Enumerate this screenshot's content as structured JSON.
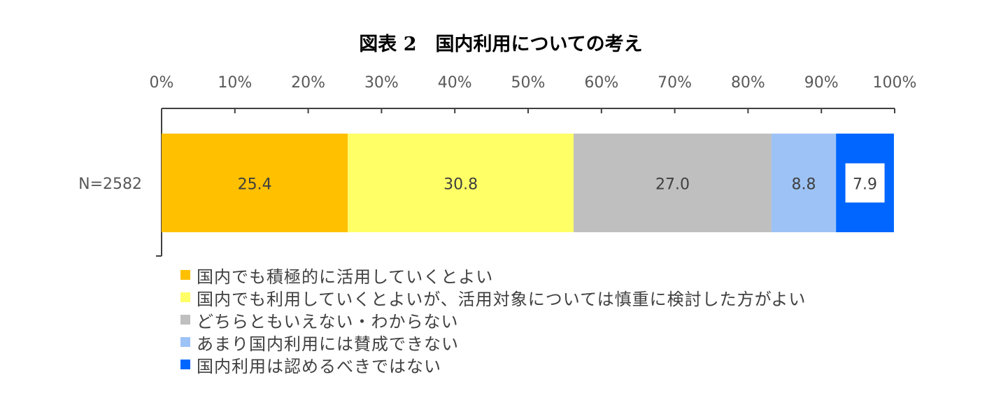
{
  "chart_data": {
    "type": "bar",
    "orientation": "horizontal",
    "stacked": true,
    "title": "図表 2　国内利用についての考え",
    "categories": [
      "N=2582"
    ],
    "series": [
      {
        "name": "国内でも積極的に活用していくとよい",
        "values": [
          25.4
        ],
        "color": "#FFC000"
      },
      {
        "name": "国内でも利用していくとよいが、活用対象については慎重に検討した方がよい",
        "values": [
          30.8
        ],
        "color": "#FFFF66"
      },
      {
        "name": "どちらともいえない・わからない",
        "values": [
          27.0
        ],
        "color": "#BFBFBF"
      },
      {
        "name": "あまり国内利用には賛成できない",
        "values": [
          8.8
        ],
        "color": "#9DC3F6"
      },
      {
        "name": "国内利用は認めるべきではない",
        "values": [
          7.9
        ],
        "color": "#0066FF"
      }
    ],
    "data_labels": [
      "25.4",
      "30.8",
      "27.0",
      "8.8",
      "7.9"
    ],
    "xlim": [
      0,
      100
    ],
    "x_ticks": [
      "0%",
      "10%",
      "20%",
      "30%",
      "40%",
      "50%",
      "60%",
      "70%",
      "80%",
      "90%",
      "100%"
    ],
    "axis_position": "top",
    "grid": false,
    "legend_position": "bottom-left"
  }
}
